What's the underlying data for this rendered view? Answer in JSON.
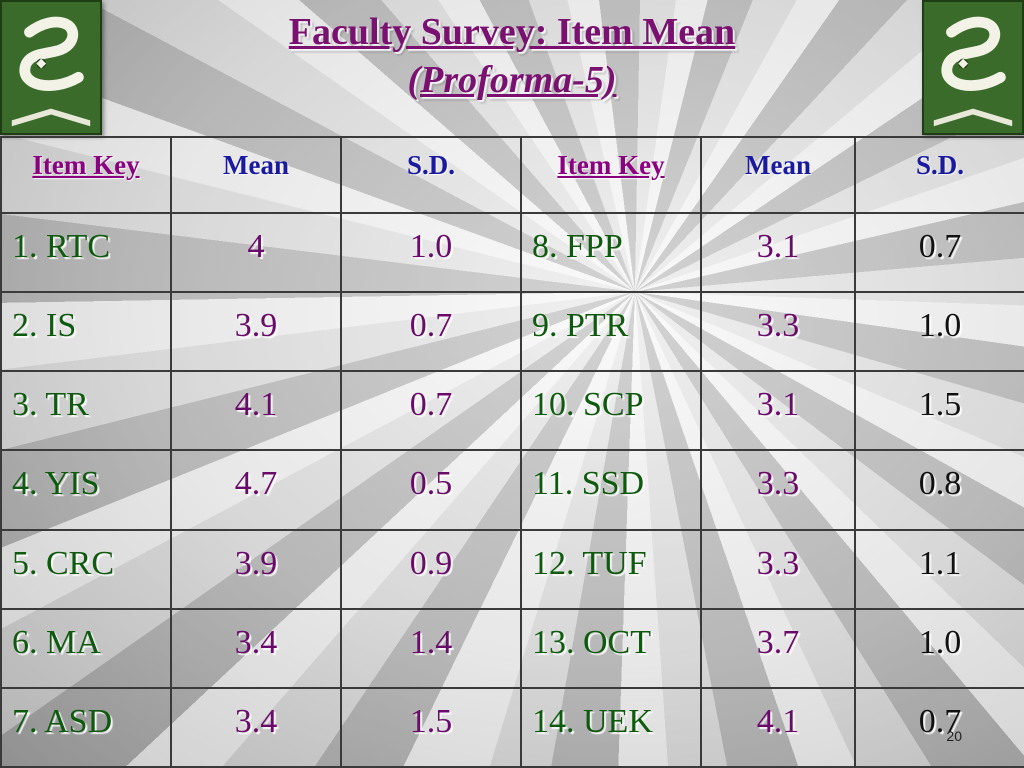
{
  "title": {
    "line1": "Faculty Survey: Item Mean",
    "line2": "(Proforma-5)"
  },
  "colors": {
    "title": "#7a1070",
    "header": "#1a1aa0",
    "item_key": "#0e5a0e",
    "logo_green": "#3a6b2a"
  },
  "logos": {
    "left_icon": "institution-logo-icon",
    "right_icon": "institution-logo-icon"
  },
  "table": {
    "headers": [
      "Item Key",
      "Mean",
      "S.D.",
      "Item Key",
      "Mean",
      "S.D."
    ],
    "rows": [
      {
        "key1": "1. RTC",
        "mean1": "4",
        "sd1": "1.0",
        "key2": "8. FPP",
        "mean2": "3.1",
        "sd2": "0.7"
      },
      {
        "key1": "2. IS",
        "mean1": "3.9",
        "sd1": "0.7",
        "key2": "9. PTR",
        "mean2": "3.3",
        "sd2": "1.0"
      },
      {
        "key1": "3. TR",
        "mean1": "4.1",
        "sd1": "0.7",
        "key2": "10. SCP",
        "mean2": "3.1",
        "sd2": "1.5"
      },
      {
        "key1": "4. YIS",
        "mean1": "4.7",
        "sd1": "0.5",
        "key2": "11. SSD",
        "mean2": "3.3",
        "sd2": "0.8"
      },
      {
        "key1": "5. CRC",
        "mean1": "3.9",
        "sd1": "0.9",
        "key2": "12. TUF",
        "mean2": "3.3",
        "sd2": "1.1"
      },
      {
        "key1": "6. MA",
        "mean1": "3.4",
        "sd1": "1.4",
        "key2": "13. OCT",
        "mean2": "3.7",
        "sd2": "1.0"
      },
      {
        "key1": "7. ASD",
        "mean1": "3.4",
        "sd1": "1.5",
        "key2": "14. UEK",
        "mean2": "4.1",
        "sd2": "0.7"
      }
    ]
  },
  "page_number": "20"
}
